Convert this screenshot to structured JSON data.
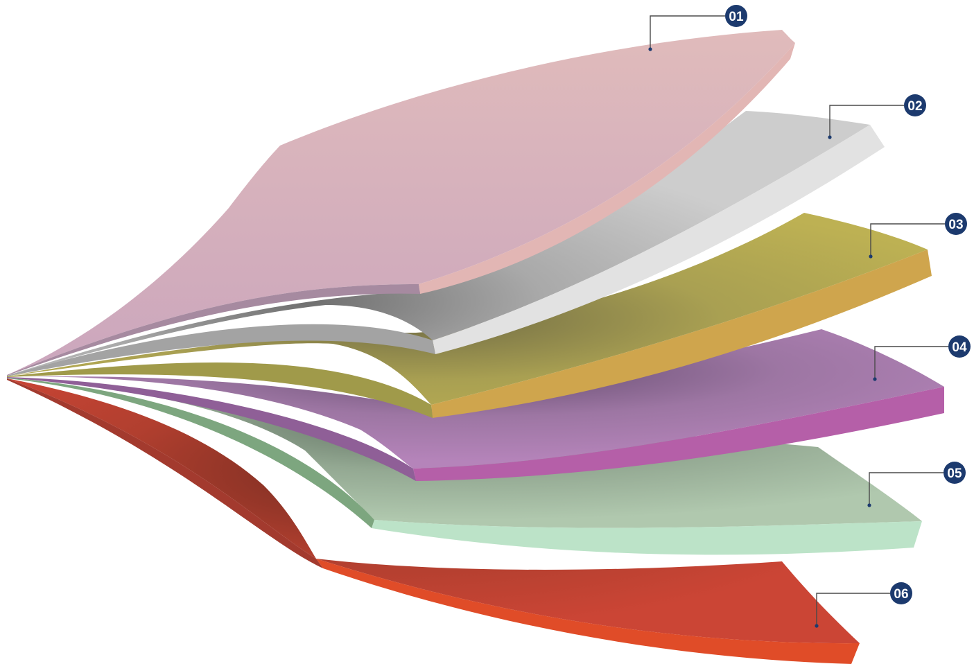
{
  "layers": [
    {
      "id": "01",
      "label": "01",
      "top_color": "#d7b0b8",
      "edge_color": "#e2b6b4"
    },
    {
      "id": "02",
      "label": "02",
      "top_color": "#c9c9c9",
      "edge_color": "#e2e2e2"
    },
    {
      "id": "03",
      "label": "03",
      "top_color": "#bbaf52",
      "edge_color": "#cfa54d"
    },
    {
      "id": "04",
      "label": "04",
      "top_color": "#b585b9",
      "edge_color": "#b55fa8"
    },
    {
      "id": "05",
      "label": "05",
      "top_color": "#afc7ad",
      "edge_color": "#bce3c8"
    },
    {
      "id": "06",
      "label": "06",
      "top_color": "#c94433",
      "edge_color": "#e04c28"
    }
  ],
  "colors": {
    "badge_fill": "#1c3a6e",
    "leader_line": "#4a4a4a",
    "badge_text": "#ffffff"
  }
}
